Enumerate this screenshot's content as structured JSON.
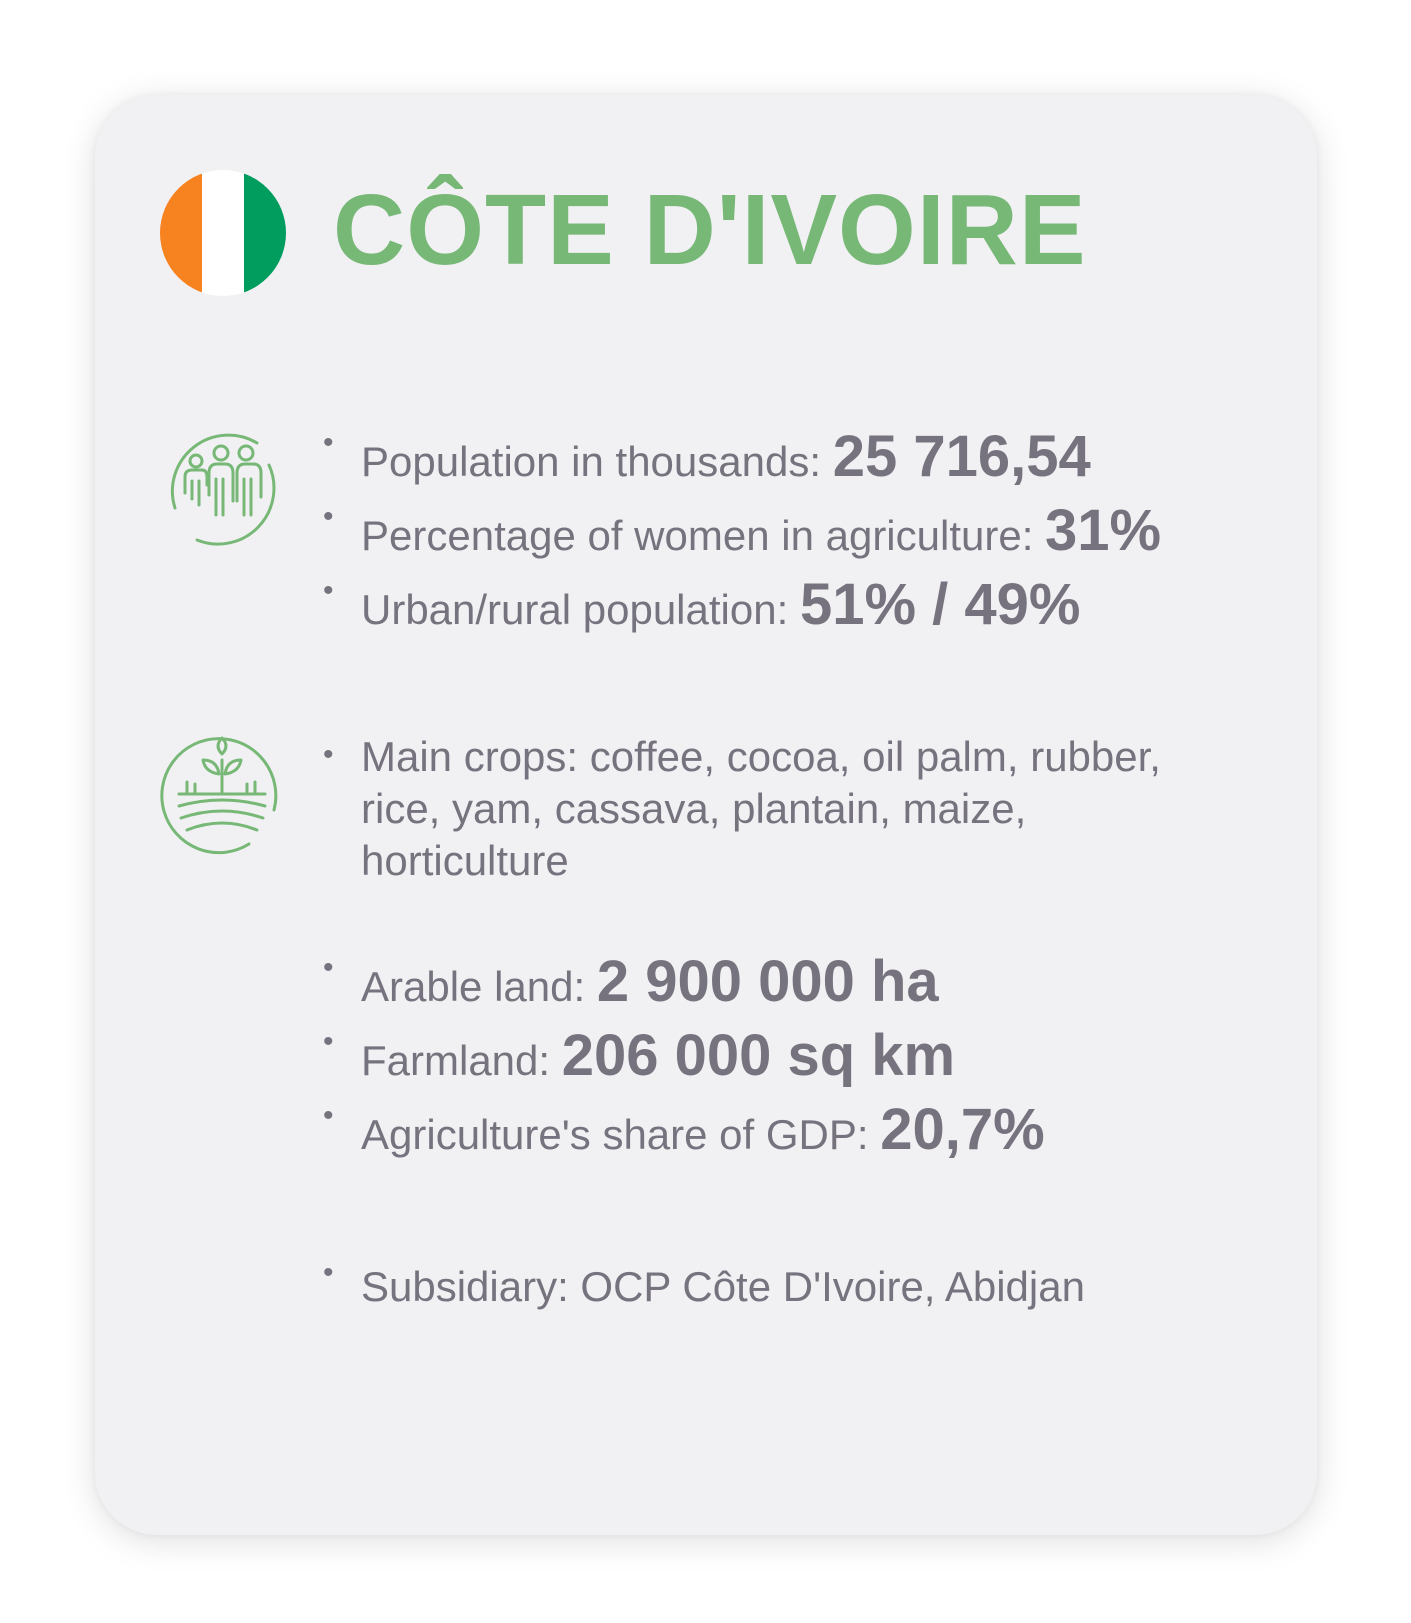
{
  "colors": {
    "accent_green": "#77b877",
    "text_gray": "#76737f",
    "card_bg": "#f1f1f3",
    "flag_orange": "#f78220",
    "flag_white": "#ffffff",
    "flag_green": "#009d5e"
  },
  "header": {
    "title": "CÔTE D'IVOIRE",
    "flag_icon": "cote-divoire-flag-icon"
  },
  "population": {
    "icon": "people-group-icon",
    "items": [
      {
        "label": "Population in thousands: ",
        "value": "25 716,54"
      },
      {
        "label": "Percentage of women in agriculture: ",
        "value": "31%"
      },
      {
        "label": "Urban/rural population: ",
        "value": "51% / 49%"
      }
    ]
  },
  "agriculture": {
    "icon": "crop-field-icon",
    "main_crops": "Main crops: coffee, cocoa, oil palm, rubber, rice, yam, cassava, plantain, maize, horticulture",
    "items": [
      {
        "label": "Arable land: ",
        "value": "2 900 000 ha"
      },
      {
        "label": "Farmland: ",
        "value": "206 000 sq km"
      },
      {
        "label": "Agriculture's share of GDP: ",
        "value": "20,7%"
      }
    ]
  },
  "subsidiary": {
    "text": "Subsidiary: OCP Côte D'Ivoire, Abidjan"
  }
}
